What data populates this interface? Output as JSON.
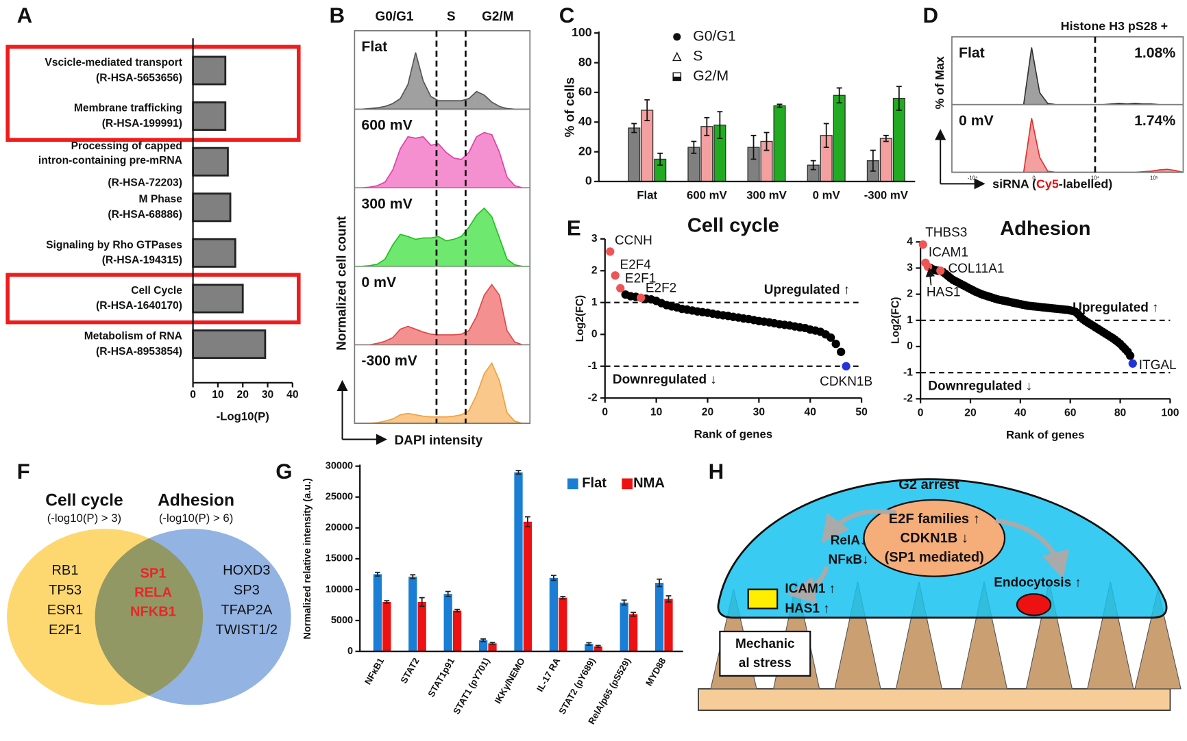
{
  "panel_labels": [
    "A",
    "B",
    "C",
    "D",
    "E",
    "F",
    "G",
    "H"
  ],
  "chart_data": [
    {
      "type": "hbar",
      "categories": [
        "Vscicle-mediated transport",
        "Membrane trafficking",
        "Processing of capped intron-containing pre-mRNA",
        "M Phase",
        "Signaling by Rho GTPases",
        "Cell Cycle",
        "Metabolism of RNA"
      ],
      "category_ids": [
        "(R-HSA-5653656)",
        "(R-HSA-199991)",
        "(R-HSA-72203)",
        "(R-HSA-68886)",
        "(R-HSA-194315)",
        "(R-HSA-1640170)",
        "(R-HSA-8953854)"
      ],
      "values": [
        13,
        13,
        14,
        15,
        17,
        20,
        29
      ],
      "color": "#808080",
      "xlim": [
        0,
        40
      ],
      "xticks": [
        0,
        10,
        20,
        30,
        40
      ],
      "xlabel": "-Log10(P)",
      "highlight_groups": [
        [
          0,
          1
        ],
        [
          5
        ]
      ],
      "highlight_color": "#ee1c1c"
    },
    {
      "type": "histogram-stack",
      "phase_labels": [
        "G0/G1",
        "S",
        "G2/M"
      ],
      "ylabel": "Normalized cell count",
      "xlabel": "DAPI intensity",
      "series": [
        {
          "name": "Flat",
          "color": "#a0a0a0",
          "stroke": "#555555",
          "values": [
            0,
            0,
            1,
            2,
            4,
            8,
            15,
            35,
            80,
            40,
            18,
            12,
            12,
            12,
            12,
            15,
            25,
            20,
            10,
            4,
            1,
            0,
            0,
            0
          ]
        },
        {
          "name": "600 mV",
          "color": "#f590d0",
          "stroke": "#e040a8",
          "values": [
            0,
            0,
            1,
            3,
            8,
            25,
            55,
            72,
            70,
            72,
            60,
            62,
            50,
            42,
            40,
            50,
            72,
            78,
            75,
            50,
            15,
            3,
            0,
            0
          ]
        },
        {
          "name": "300 mV",
          "color": "#6ee86e",
          "stroke": "#22c022",
          "values": [
            0,
            0,
            1,
            3,
            10,
            30,
            45,
            42,
            38,
            40,
            40,
            42,
            36,
            38,
            42,
            55,
            72,
            82,
            70,
            40,
            10,
            2,
            0,
            0
          ]
        },
        {
          "name": "0 mV",
          "color": "#f49090",
          "stroke": "#e04848",
          "values": [
            0,
            0,
            0,
            2,
            5,
            10,
            22,
            26,
            22,
            18,
            15,
            14,
            14,
            14,
            15,
            20,
            40,
            70,
            85,
            70,
            20,
            4,
            0,
            0
          ]
        },
        {
          "name": "-300 mV",
          "color": "#f9c88a",
          "stroke": "#f0a040",
          "values": [
            0,
            0,
            0,
            1,
            3,
            6,
            12,
            14,
            12,
            10,
            9,
            9,
            9,
            10,
            12,
            18,
            40,
            70,
            85,
            60,
            15,
            3,
            0,
            0
          ]
        }
      ]
    },
    {
      "type": "grouped-bar",
      "categories": [
        "Flat",
        "600 mV",
        "300 mV",
        "0 mV",
        "-300 mV"
      ],
      "series": [
        {
          "name": "G0/G1",
          "color": "#808080",
          "marker": "circle",
          "values": [
            36,
            23,
            23,
            11,
            14
          ],
          "errors": [
            3,
            4,
            8,
            3,
            7
          ]
        },
        {
          "name": "S",
          "color": "#f4a0a0",
          "marker": "triangle",
          "values": [
            48,
            37,
            27,
            31,
            29
          ],
          "errors": [
            7,
            6,
            6,
            8,
            2
          ]
        },
        {
          "name": "G2/M",
          "color": "#22aa22",
          "marker": "square",
          "values": [
            15,
            38,
            51,
            58,
            56
          ],
          "errors": [
            4,
            9,
            1,
            5,
            8
          ]
        }
      ],
      "ylim": [
        0,
        100
      ],
      "yticks": [
        0,
        20,
        40,
        60,
        80,
        100
      ],
      "ylabel": "% of cells",
      "legend": "top"
    },
    {
      "type": "histogram-stack",
      "title": "Histone H3 pS28 +",
      "ylabel": "% of Max",
      "xlabel_parts": [
        "siRNA (",
        "Cy5",
        "-labelled)"
      ],
      "xtick_labels": [
        "-10⁴",
        "0",
        "10⁴",
        "10⁵"
      ],
      "gate_labels": [
        "1.08%",
        "1.74%"
      ],
      "series": [
        {
          "name": "Flat",
          "color": "#a0a0a0",
          "stroke": "#333333",
          "values": [
            0,
            0,
            0,
            0,
            0,
            0,
            0,
            0,
            0,
            0,
            95,
            20,
            2,
            0,
            0,
            0,
            0,
            0,
            0,
            0,
            1,
            2,
            1,
            2,
            1,
            1,
            0,
            0,
            0,
            0
          ]
        },
        {
          "name": "0 mV",
          "color": "#f4a0a0",
          "stroke": "#e03030",
          "values": [
            0,
            0,
            0,
            0,
            0,
            0,
            0,
            0,
            0,
            0,
            90,
            25,
            2,
            0,
            0,
            0,
            0,
            0,
            0,
            0,
            0,
            0,
            0,
            0,
            1,
            2,
            4,
            5,
            3,
            0
          ]
        }
      ]
    },
    {
      "type": "scatter",
      "title": "Cell cycle",
      "xlabel": "Rank of genes",
      "ylabel": "Log2(FC)",
      "xlim": [
        0,
        50
      ],
      "xticks": [
        0,
        10,
        20,
        30,
        40,
        50
      ],
      "ylim": [
        -2,
        3
      ],
      "yticks": [
        -2,
        -1,
        0,
        1,
        2,
        3
      ],
      "thresholds": [
        1,
        -1
      ],
      "threshold_labels": [
        "Upregulated ↑",
        "Downregulated ↓"
      ],
      "series": [
        {
          "color": "#000000",
          "x": [
            4,
            5,
            6,
            8,
            9,
            10,
            11,
            12,
            13,
            14,
            15,
            16,
            17,
            18,
            19,
            20,
            21,
            22,
            23,
            24,
            25,
            26,
            27,
            28,
            29,
            30,
            31,
            32,
            33,
            34,
            35,
            36,
            37,
            38,
            39,
            40,
            41,
            42,
            43,
            44,
            45,
            46
          ],
          "values": [
            1.25,
            1.2,
            1.18,
            1.12,
            1.1,
            1.05,
            0.98,
            0.92,
            0.88,
            0.85,
            0.8,
            0.78,
            0.75,
            0.72,
            0.7,
            0.68,
            0.65,
            0.62,
            0.6,
            0.58,
            0.55,
            0.53,
            0.5,
            0.48,
            0.45,
            0.42,
            0.4,
            0.38,
            0.35,
            0.32,
            0.3,
            0.28,
            0.25,
            0.22,
            0.2,
            0.15,
            0.12,
            0.08,
            0.0,
            -0.1,
            -0.3,
            -0.55
          ]
        },
        {
          "color": "#f05555",
          "x": [
            1,
            2,
            3,
            7
          ],
          "values": [
            2.6,
            1.85,
            1.45,
            1.15
          ],
          "labels": [
            "CCNH",
            "E2F4",
            "E2F1",
            "E2F2"
          ]
        },
        {
          "color": "#2233dd",
          "x": [
            47
          ],
          "values": [
            -1.0
          ],
          "labels": [
            "CDKN1B"
          ]
        }
      ]
    },
    {
      "type": "scatter",
      "title": "Adhesion",
      "xlabel": "Rank of genes",
      "ylabel": "Log2(FC)",
      "xlim": [
        0,
        100
      ],
      "xticks": [
        0,
        20,
        40,
        60,
        80,
        100
      ],
      "ylim": [
        -2,
        4
      ],
      "yticks": [
        -2,
        -1,
        0,
        1,
        2,
        3,
        4
      ],
      "thresholds": [
        1,
        -1
      ],
      "threshold_labels": [
        "Upregulated ↑",
        "Downregulated ↓"
      ],
      "series": [
        {
          "color": "#000000",
          "x": [
            4,
            5,
            6,
            7,
            9,
            10,
            11,
            12,
            13,
            14,
            15,
            16,
            17,
            18,
            19,
            20,
            21,
            22,
            23,
            24,
            25,
            26,
            27,
            28,
            29,
            30,
            31,
            32,
            33,
            34,
            35,
            36,
            37,
            38,
            39,
            40,
            41,
            42,
            43,
            44,
            45,
            46,
            47,
            48,
            49,
            50,
            51,
            52,
            53,
            54,
            55,
            56,
            57,
            58,
            59,
            60,
            61,
            62,
            63,
            64,
            65,
            66,
            67,
            68,
            69,
            70,
            71,
            72,
            73,
            74,
            75,
            76,
            77,
            78,
            79,
            80,
            81,
            82,
            83,
            84
          ],
          "values": [
            3.0,
            2.95,
            2.92,
            2.9,
            2.85,
            2.78,
            2.7,
            2.62,
            2.55,
            2.5,
            2.45,
            2.4,
            2.35,
            2.3,
            2.25,
            2.2,
            2.15,
            2.1,
            2.06,
            2.02,
            1.98,
            1.95,
            1.92,
            1.89,
            1.86,
            1.83,
            1.8,
            1.78,
            1.76,
            1.74,
            1.72,
            1.7,
            1.68,
            1.66,
            1.64,
            1.62,
            1.6,
            1.58,
            1.56,
            1.55,
            1.54,
            1.53,
            1.52,
            1.51,
            1.5,
            1.49,
            1.48,
            1.47,
            1.46,
            1.45,
            1.44,
            1.43,
            1.42,
            1.41,
            1.4,
            1.38,
            1.36,
            1.33,
            1.25,
            1.15,
            1.05,
            0.98,
            0.92,
            0.86,
            0.8,
            0.74,
            0.68,
            0.62,
            0.56,
            0.5,
            0.44,
            0.38,
            0.32,
            0.25,
            0.18,
            0.1,
            0.0,
            -0.1,
            -0.2,
            -0.35
          ]
        },
        {
          "color": "#f05555",
          "x": [
            1,
            2,
            3,
            8
          ],
          "values": [
            3.9,
            3.2,
            3.05,
            2.9
          ],
          "labels": [
            "THBS3",
            "ICAM1",
            "HAS1",
            "COL11A1"
          ]
        },
        {
          "color": "#2233dd",
          "x": [
            85
          ],
          "values": [
            -0.65
          ],
          "labels": [
            "ITGAL"
          ]
        }
      ]
    },
    {
      "type": "grouped-bar",
      "categories": [
        "NFκB1",
        "STAT2",
        "STAT1p91",
        "STAT1 (pY701)",
        "IKKγ/NEMO",
        "IL-17 RA",
        "STAT2 (pY689)",
        "RelA/p65 (pS529)",
        "MYD88"
      ],
      "series": [
        {
          "name": "Flat",
          "color": "#1a7fd4",
          "values": [
            12500,
            12100,
            9300,
            1800,
            29000,
            11900,
            1200,
            7900,
            11100
          ],
          "errors": [
            300,
            300,
            400,
            200,
            300,
            400,
            200,
            400,
            600
          ]
        },
        {
          "name": "NMA",
          "color": "#ee1111",
          "values": [
            8000,
            8000,
            6600,
            1300,
            21000,
            8700,
            800,
            6000,
            8500
          ],
          "errors": [
            200,
            700,
            200,
            150,
            800,
            200,
            150,
            300,
            500
          ]
        }
      ],
      "ylim": [
        0,
        30000
      ],
      "yticks": [
        0,
        5000,
        10000,
        15000,
        20000,
        25000,
        30000
      ],
      "ylabel": "Normalized relative intensity (a.u.)",
      "legend": "top-right"
    }
  ],
  "venn": {
    "sets": [
      {
        "title": "Cell cycle",
        "criterion": "(-log10(P) > 3)",
        "items": [
          "RB1",
          "TP53",
          "ESR1",
          "E2F1"
        ]
      },
      {
        "title": "Adhesion",
        "criterion": "(-log10(P) > 6)",
        "items": [
          "HOXD3",
          "SP3",
          "TFAP2A",
          "TWIST1/2"
        ]
      }
    ],
    "overlap": [
      "SP1",
      "RELA",
      "NFKB1"
    ]
  },
  "schematic": {
    "cell_label": "G2 arrest",
    "nucleus": [
      "E2F families ↑",
      "CDKN1B ↓",
      "(SP1 mediated)"
    ],
    "signaling": [
      "RelA↓",
      "NFκB↓"
    ],
    "adhesion": [
      "ICAM1 ↑",
      "HAS1 ↑"
    ],
    "endocytosis": "Endocytosis ↑",
    "stress": [
      "Mechanic",
      "al stress"
    ]
  }
}
